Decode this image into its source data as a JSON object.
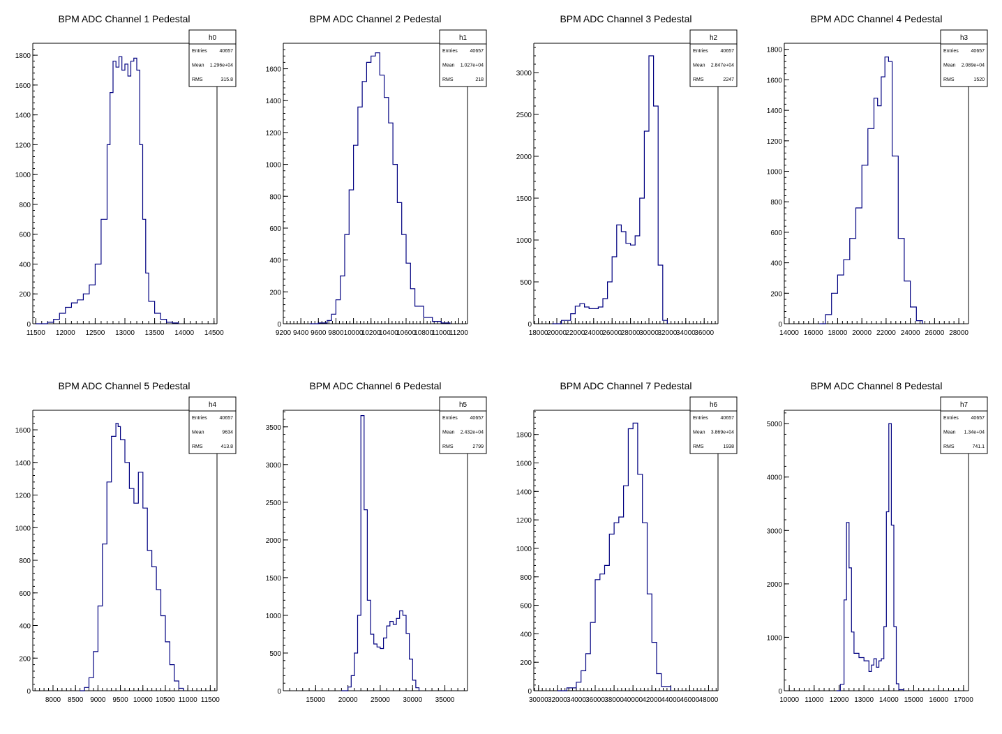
{
  "chart_data": [
    {
      "type": "bar",
      "title": "BPM ADC Channel 1 Pedestal",
      "xlim": [
        11450,
        14550
      ],
      "ylim": [
        0,
        1880
      ],
      "xticks": [
        11500,
        12000,
        12500,
        13000,
        13500,
        14000,
        14500
      ],
      "yticks": [
        0,
        200,
        400,
        600,
        800,
        1000,
        1200,
        1400,
        1600,
        1800
      ],
      "x": [
        11500,
        11700,
        11800,
        11900,
        12000,
        12100,
        12200,
        12300,
        12400,
        12500,
        12600,
        12700,
        12750,
        12800,
        12850,
        12900,
        12950,
        13000,
        13050,
        13100,
        13150,
        13200,
        13250,
        13300,
        13350,
        13400,
        13500,
        13600,
        13700,
        13800,
        13900
      ],
      "values": [
        0,
        10,
        30,
        70,
        110,
        140,
        160,
        200,
        260,
        400,
        700,
        1200,
        1550,
        1760,
        1720,
        1790,
        1700,
        1740,
        1660,
        1760,
        1780,
        1700,
        1200,
        700,
        340,
        150,
        70,
        30,
        10,
        5,
        0
      ],
      "stats": {
        "name": "h0",
        "rows": [
          [
            "Entries",
            "40657"
          ],
          [
            "Mean",
            "1.296e+04"
          ],
          [
            "RMS",
            "315.8"
          ]
        ]
      }
    },
    {
      "type": "bar",
      "title": "BPM ADC Channel 2 Pedestal",
      "xlim": [
        9200,
        11300
      ],
      "ylim": [
        0,
        1760
      ],
      "xticks": [
        9200,
        9400,
        9600,
        9800,
        10000,
        10200,
        10400,
        10600,
        10800,
        11000,
        11200
      ],
      "xtick_labels": [
        "9200",
        "9400",
        "9600",
        "9800",
        "10000",
        "10200",
        "10400",
        "10600",
        "10800",
        "11000",
        "11200"
      ],
      "yticks": [
        0,
        200,
        400,
        600,
        800,
        1000,
        1200,
        1400,
        1600
      ],
      "x": [
        9500,
        9600,
        9700,
        9750,
        9800,
        9850,
        9900,
        9950,
        10000,
        10050,
        10100,
        10150,
        10200,
        10250,
        10300,
        10350,
        10400,
        10450,
        10500,
        10550,
        10600,
        10650,
        10700,
        10800,
        10900,
        11000,
        11100
      ],
      "values": [
        0,
        5,
        20,
        60,
        150,
        300,
        560,
        840,
        1120,
        1360,
        1520,
        1640,
        1680,
        1700,
        1560,
        1420,
        1260,
        1000,
        760,
        560,
        380,
        220,
        110,
        40,
        15,
        5,
        0
      ],
      "stats": {
        "name": "h1",
        "rows": [
          [
            "Entries",
            "40657"
          ],
          [
            "Mean",
            "1.027e+04"
          ],
          [
            "RMS",
            "218"
          ]
        ]
      }
    },
    {
      "type": "bar",
      "title": "BPM ADC Channel 3 Pedestal",
      "xlim": [
        17500,
        37500
      ],
      "ylim": [
        0,
        3350
      ],
      "xticks": [
        18000,
        20000,
        22000,
        24000,
        26000,
        28000,
        30000,
        32000,
        34000,
        36000
      ],
      "yticks": [
        0,
        500,
        1000,
        1500,
        2000,
        2500,
        3000
      ],
      "x": [
        19500,
        20500,
        21500,
        22000,
        22500,
        23000,
        23500,
        24500,
        25000,
        25500,
        26000,
        26500,
        27000,
        27500,
        28000,
        28500,
        29000,
        29500,
        30000,
        30500,
        31000,
        31500,
        32000
      ],
      "values": [
        0,
        40,
        120,
        210,
        240,
        200,
        180,
        200,
        300,
        500,
        800,
        1180,
        1100,
        960,
        940,
        1050,
        1500,
        2300,
        3200,
        2600,
        700,
        40,
        0
      ],
      "stats": {
        "name": "h2",
        "rows": [
          [
            "Entries",
            "40657"
          ],
          [
            "Mean",
            "2.847e+04"
          ],
          [
            "RMS",
            "2247"
          ]
        ]
      }
    },
    {
      "type": "bar",
      "title": "BPM ADC Channel 4 Pedestal",
      "xlim": [
        13600,
        28800
      ],
      "ylim": [
        0,
        1840
      ],
      "xticks": [
        14000,
        16000,
        18000,
        20000,
        22000,
        24000,
        26000,
        28000
      ],
      "yticks": [
        0,
        200,
        400,
        600,
        800,
        1000,
        1200,
        1400,
        1600,
        1800
      ],
      "x": [
        16500,
        17000,
        17500,
        18000,
        18500,
        19000,
        19500,
        20000,
        20500,
        21000,
        21300,
        21600,
        21900,
        22200,
        22500,
        23000,
        23500,
        24000,
        24500,
        25000
      ],
      "values": [
        0,
        60,
        200,
        320,
        420,
        560,
        760,
        1040,
        1280,
        1480,
        1430,
        1620,
        1750,
        1720,
        1100,
        560,
        280,
        110,
        20,
        0
      ],
      "stats": {
        "name": "h3",
        "rows": [
          [
            "Entries",
            "40657"
          ],
          [
            "Mean",
            "2.089e+04"
          ],
          [
            "RMS",
            "1520"
          ]
        ]
      }
    },
    {
      "type": "bar",
      "title": "BPM ADC Channel 5 Pedestal",
      "xlim": [
        7550,
        11650
      ],
      "ylim": [
        0,
        1720
      ],
      "xticks": [
        8000,
        8500,
        9000,
        9500,
        10000,
        10500,
        11000,
        11500
      ],
      "yticks": [
        0,
        200,
        400,
        600,
        800,
        1000,
        1200,
        1400,
        1600
      ],
      "x": [
        8600,
        8700,
        8800,
        8900,
        9000,
        9100,
        9200,
        9300,
        9400,
        9450,
        9500,
        9600,
        9700,
        9800,
        9900,
        10000,
        10100,
        10200,
        10300,
        10400,
        10500,
        10600,
        10700,
        10800,
        10900
      ],
      "values": [
        0,
        20,
        80,
        240,
        520,
        900,
        1280,
        1560,
        1640,
        1620,
        1540,
        1400,
        1240,
        1150,
        1340,
        1120,
        860,
        760,
        620,
        460,
        300,
        160,
        60,
        15,
        0
      ],
      "stats": {
        "name": "h4",
        "rows": [
          [
            "Entries",
            "40657"
          ],
          [
            "Mean",
            "9634"
          ],
          [
            "RMS",
            "413.8"
          ]
        ]
      }
    },
    {
      "type": "bar",
      "title": "BPM ADC Channel 6 Pedestal",
      "xlim": [
        10000,
        38500
      ],
      "ylim": [
        0,
        3720
      ],
      "xticks": [
        15000,
        20000,
        25000,
        30000,
        35000
      ],
      "yticks": [
        0,
        500,
        1000,
        1500,
        2000,
        2500,
        3000,
        3500
      ],
      "x": [
        19000,
        20000,
        20500,
        21000,
        21500,
        22000,
        22500,
        23000,
        23500,
        24000,
        24500,
        25000,
        25500,
        26000,
        26500,
        27000,
        27500,
        28000,
        28500,
        29000,
        29500,
        30000,
        30500,
        31000
      ],
      "values": [
        0,
        50,
        200,
        500,
        1000,
        3650,
        2400,
        1200,
        750,
        620,
        580,
        560,
        700,
        860,
        920,
        880,
        960,
        1060,
        1000,
        760,
        420,
        140,
        40,
        0
      ],
      "stats": {
        "name": "h5",
        "rows": [
          [
            "Entries",
            "40657"
          ],
          [
            "Mean",
            "2.432e+04"
          ],
          [
            "RMS",
            "2799"
          ]
        ]
      }
    },
    {
      "type": "bar",
      "title": "BPM ADC Channel 7 Pedestal",
      "xlim": [
        29500,
        49000
      ],
      "ylim": [
        0,
        1970
      ],
      "xticks": [
        30000,
        32000,
        34000,
        36000,
        38000,
        40000,
        42000,
        44000,
        46000,
        48000
      ],
      "yticks": [
        0,
        200,
        400,
        600,
        800,
        1000,
        1200,
        1400,
        1600,
        1800
      ],
      "x": [
        32000,
        33000,
        34000,
        34500,
        35000,
        35500,
        36000,
        36500,
        37000,
        37500,
        38000,
        38500,
        39000,
        39500,
        40000,
        40500,
        41000,
        41500,
        42000,
        42500,
        43000,
        44000
      ],
      "values": [
        0,
        20,
        60,
        140,
        260,
        480,
        780,
        820,
        880,
        1100,
        1180,
        1220,
        1440,
        1840,
        1880,
        1520,
        1180,
        680,
        340,
        120,
        30,
        0
      ],
      "stats": {
        "name": "h6",
        "rows": [
          [
            "Entries",
            "40657"
          ],
          [
            "Mean",
            "3.869e+04"
          ],
          [
            "RMS",
            "1938"
          ]
        ]
      }
    },
    {
      "type": "bar",
      "title": "BPM ADC Channel 8 Pedestal",
      "xlim": [
        9800,
        17200
      ],
      "ylim": [
        0,
        5250
      ],
      "xticks": [
        10000,
        11000,
        12000,
        13000,
        14000,
        15000,
        16000,
        17000
      ],
      "yticks": [
        0,
        1000,
        2000,
        3000,
        4000,
        5000
      ],
      "x": [
        11900,
        12050,
        12200,
        12300,
        12400,
        12500,
        12600,
        12800,
        13000,
        13200,
        13300,
        13400,
        13500,
        13600,
        13700,
        13800,
        13900,
        14000,
        14100,
        14200,
        14300,
        14400,
        14600
      ],
      "values": [
        0,
        120,
        1700,
        3150,
        2300,
        1100,
        700,
        620,
        560,
        360,
        480,
        600,
        440,
        560,
        600,
        1200,
        3350,
        5000,
        3100,
        1200,
        130,
        20,
        0
      ],
      "stats": {
        "name": "h7",
        "rows": [
          [
            "Entries",
            "40657"
          ],
          [
            "Mean",
            "1.34e+04"
          ],
          [
            "RMS",
            "741.1"
          ]
        ]
      }
    }
  ],
  "colors": {
    "line": "#000080",
    "axis": "#000000"
  }
}
